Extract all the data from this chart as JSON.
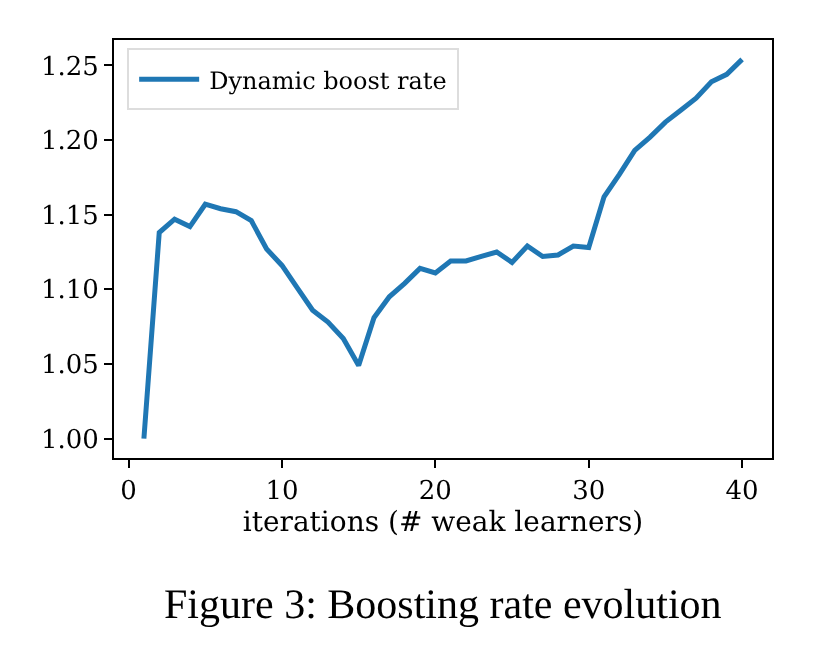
{
  "chart_data": {
    "type": "line",
    "xlabel": "iterations (# weak learners)",
    "annotations": [
      "Figure 3: Boosting rate evolution"
    ],
    "x": [
      1,
      2,
      3,
      4,
      5,
      6,
      7,
      8,
      9,
      10,
      11,
      12,
      13,
      14,
      15,
      16,
      17,
      18,
      19,
      20,
      21,
      22,
      23,
      24,
      25,
      26,
      27,
      28,
      29,
      30,
      31,
      32,
      33,
      34,
      35,
      36,
      37,
      38,
      39,
      40
    ],
    "series": [
      {
        "name": "Dynamic boost rate",
        "color": "#1f77b4",
        "values": [
          1.0,
          1.138,
          1.147,
          1.142,
          1.157,
          1.154,
          1.152,
          1.146,
          1.127,
          1.116,
          1.101,
          1.086,
          1.078,
          1.067,
          1.049,
          1.081,
          1.095,
          1.104,
          1.114,
          1.111,
          1.119,
          1.119,
          1.122,
          1.125,
          1.118,
          1.129,
          1.122,
          1.123,
          1.129,
          1.128,
          1.162,
          1.177,
          1.193,
          1.202,
          1.212,
          1.22,
          1.228,
          1.239,
          1.244,
          1.254
        ]
      }
    ],
    "xlim": [
      -0.95,
      41.95
    ],
    "xticks": [
      0,
      10,
      20,
      30,
      40
    ],
    "ylim": [
      0.987,
      1.267
    ],
    "yticks": [
      {
        "value": 1.0,
        "label": "1.00"
      },
      {
        "value": 1.05,
        "label": "1.05"
      },
      {
        "value": 1.1,
        "label": "1.10"
      },
      {
        "value": 1.15,
        "label": "1.15"
      },
      {
        "value": 1.2,
        "label": "1.20"
      },
      {
        "value": 1.25,
        "label": "1.25"
      }
    ],
    "legend": "top left",
    "marker": "none",
    "line_style": "solid"
  }
}
